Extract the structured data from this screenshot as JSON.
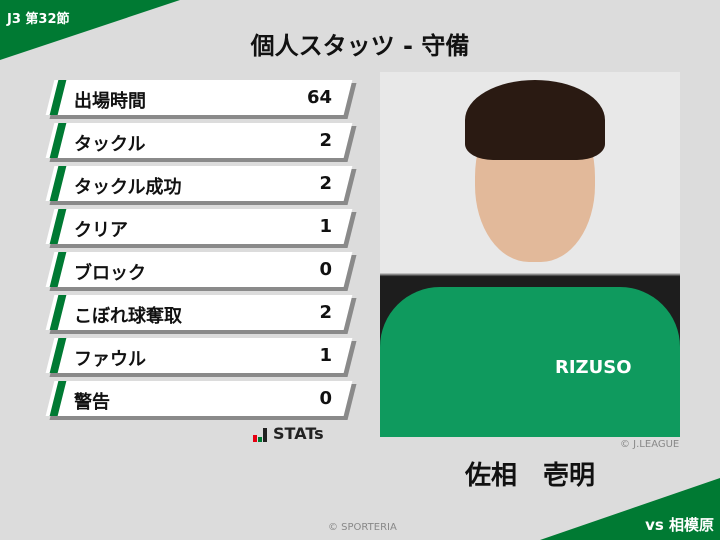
{
  "round": "J3 第32節",
  "title": "個人スタッツ - 守備",
  "stats": [
    {
      "label": "出場時間",
      "value": "64"
    },
    {
      "label": "タックル",
      "value": "2"
    },
    {
      "label": "タックル成功",
      "value": "2"
    },
    {
      "label": "クリア",
      "value": "1"
    },
    {
      "label": "ブロック",
      "value": "0"
    },
    {
      "label": "こぼれ球奪取",
      "value": "2"
    },
    {
      "label": "ファウル",
      "value": "1"
    },
    {
      "label": "警告",
      "value": "0"
    }
  ],
  "brand": "STATs",
  "photo_credit": "© J.LEAGUE",
  "player_name": "佐相　壱明",
  "sponsor": "RIZUSO",
  "copyright": "© SPORTERIA",
  "opponent": "vs 相模原",
  "colors": {
    "accent": "#007a33",
    "background": "#dcdcdc"
  }
}
